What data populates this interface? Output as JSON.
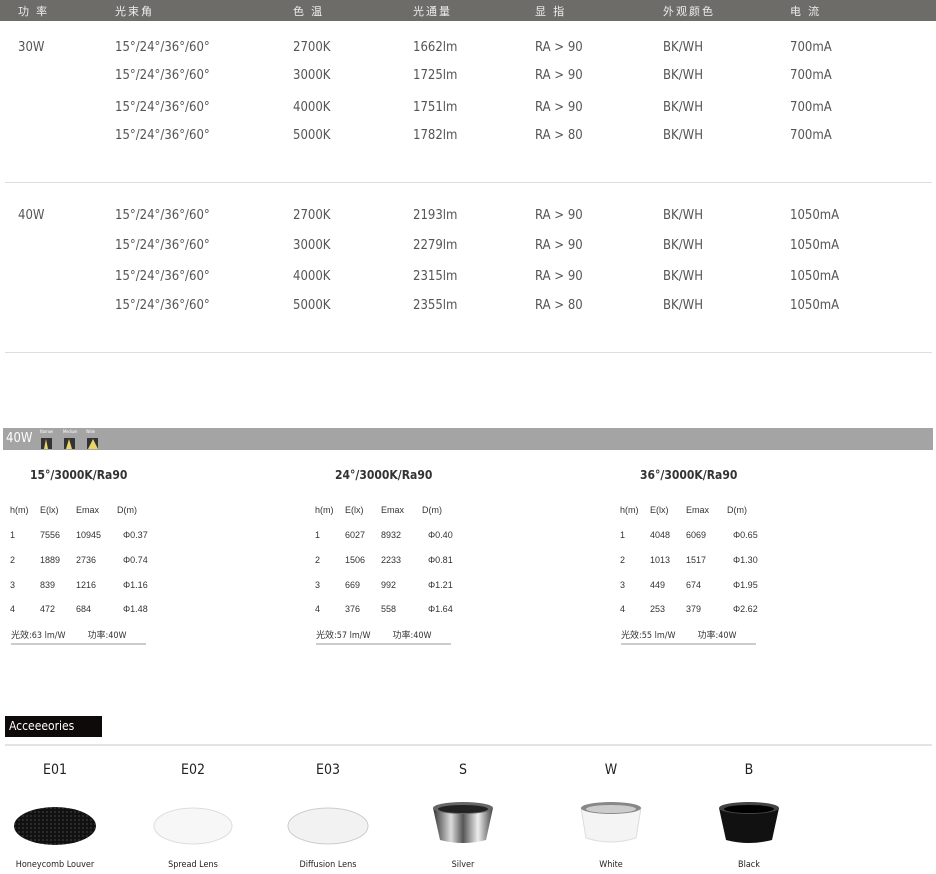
{
  "header": [
    "功 率",
    "光束角",
    "色 温",
    "光通量",
    "显 指",
    "外观颜色",
    "电 流"
  ],
  "groups": [
    {
      "power": "30W",
      "rows": [
        [
          "15°/24°/36°/60°",
          "2700K",
          "1662lm",
          "RA > 90",
          "BK/WH",
          "700mA"
        ],
        [
          "15°/24°/36°/60°",
          "3000K",
          "1725lm",
          "RA > 90",
          "BK/WH",
          "700mA"
        ],
        [
          "15°/24°/36°/60°",
          "4000K",
          "1751lm",
          "RA > 90",
          "BK/WH",
          "700mA"
        ],
        [
          "15°/24°/36°/60°",
          "5000K",
          "1782lm",
          "RA > 80",
          "BK/WH",
          "700mA"
        ]
      ]
    },
    {
      "power": "40W",
      "rows": [
        [
          "15°/24°/36°/60°",
          "2700K",
          "2193lm",
          "RA > 90",
          "BK/WH",
          "1050mA"
        ],
        [
          "15°/24°/36°/60°",
          "3000K",
          "2279lm",
          "RA > 90",
          "BK/WH",
          "1050mA"
        ],
        [
          "15°/24°/36°/60°",
          "4000K",
          "2315lm",
          "RA > 90",
          "BK/WH",
          "1050mA"
        ],
        [
          "15°/24°/36°/60°",
          "5000K",
          "2355lm",
          "RA > 80",
          "BK/WH",
          "1050mA"
        ]
      ]
    }
  ],
  "photometric": {
    "bar_label": "40W",
    "beam_icons": [
      "Narrow",
      "Medium",
      "Wide"
    ],
    "columns": [
      "h(m)",
      "E(lx)",
      "Emax",
      "D(m)"
    ],
    "tables": [
      {
        "title": "15°/3000K/Ra90",
        "rows": [
          [
            "1",
            "7556",
            "10945",
            "Φ0.37"
          ],
          [
            "2",
            "1889",
            "2736",
            "Φ0.74"
          ],
          [
            "3",
            "839",
            "1216",
            "Φ1.16"
          ],
          [
            "4",
            "472",
            "684",
            "Φ1.48"
          ]
        ],
        "efficacy": "光效:63 lm/W",
        "power": "功率:40W"
      },
      {
        "title": "24°/3000K/Ra90",
        "rows": [
          [
            "1",
            "6027",
            "8932",
            "Φ0.40"
          ],
          [
            "2",
            "1506",
            "2233",
            "Φ0.81"
          ],
          [
            "3",
            "669",
            "992",
            "Φ1.21"
          ],
          [
            "4",
            "376",
            "558",
            "Φ1.64"
          ]
        ],
        "efficacy": "光效:57 lm/W",
        "power": "功率:40W"
      },
      {
        "title": "36°/3000K/Ra90",
        "rows": [
          [
            "1",
            "4048",
            "6069",
            "Φ0.65"
          ],
          [
            "2",
            "1013",
            "1517",
            "Φ1.30"
          ],
          [
            "3",
            "449",
            "674",
            "Φ1.95"
          ],
          [
            "4",
            "253",
            "379",
            "Φ2.62"
          ]
        ],
        "efficacy": "光效:55 lm/W",
        "power": "功率:40W"
      }
    ]
  },
  "accessories": {
    "title": "Acceeeories",
    "items": [
      {
        "code": "E01",
        "name": "Honeycomb Louver"
      },
      {
        "code": "E02",
        "name": "Spread Lens"
      },
      {
        "code": "E03",
        "name": "Diffusion Lens"
      },
      {
        "code": "S",
        "name": "Silver"
      },
      {
        "code": "W",
        "name": "White"
      },
      {
        "code": "B",
        "name": "Black"
      }
    ]
  }
}
